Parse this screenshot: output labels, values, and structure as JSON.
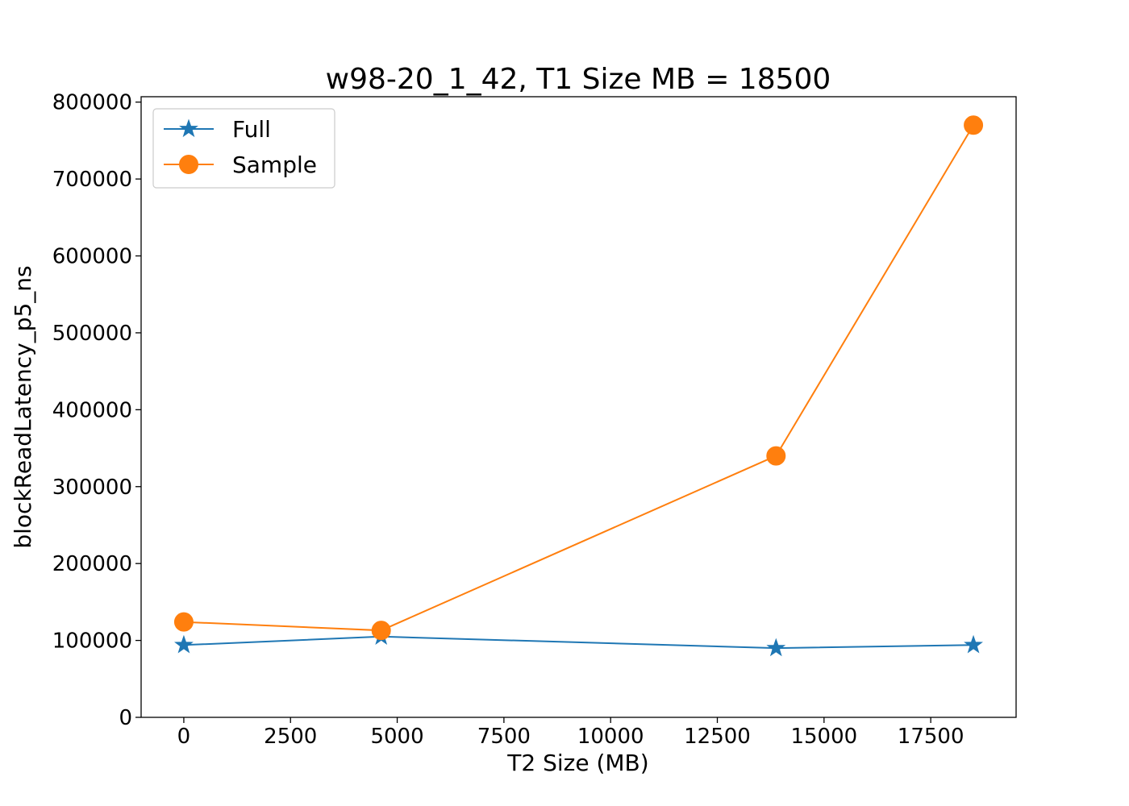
{
  "chart_data": {
    "type": "line",
    "title": "w98-20_1_42, T1 Size MB = 18500",
    "xlabel": "T2 Size (MB)",
    "ylabel": "blockReadLatency_p5_ns",
    "xlim": [
      -1000,
      19500
    ],
    "ylim": [
      0,
      807000
    ],
    "x_ticks": [
      0,
      2500,
      5000,
      7500,
      10000,
      12500,
      15000,
      17500
    ],
    "y_ticks": [
      0,
      100000,
      200000,
      300000,
      400000,
      500000,
      600000,
      700000,
      800000
    ],
    "x": [
      0,
      4625,
      13875,
      18500
    ],
    "series": [
      {
        "name": "Full",
        "marker": "star",
        "color": "#1f77b4",
        "values": [
          94000,
          105000,
          90000,
          94000
        ]
      },
      {
        "name": "Sample",
        "marker": "circle",
        "color": "#ff7f0e",
        "values": [
          124000,
          113000,
          340000,
          770000
        ]
      }
    ],
    "grid": false,
    "legend": "upper-left"
  }
}
